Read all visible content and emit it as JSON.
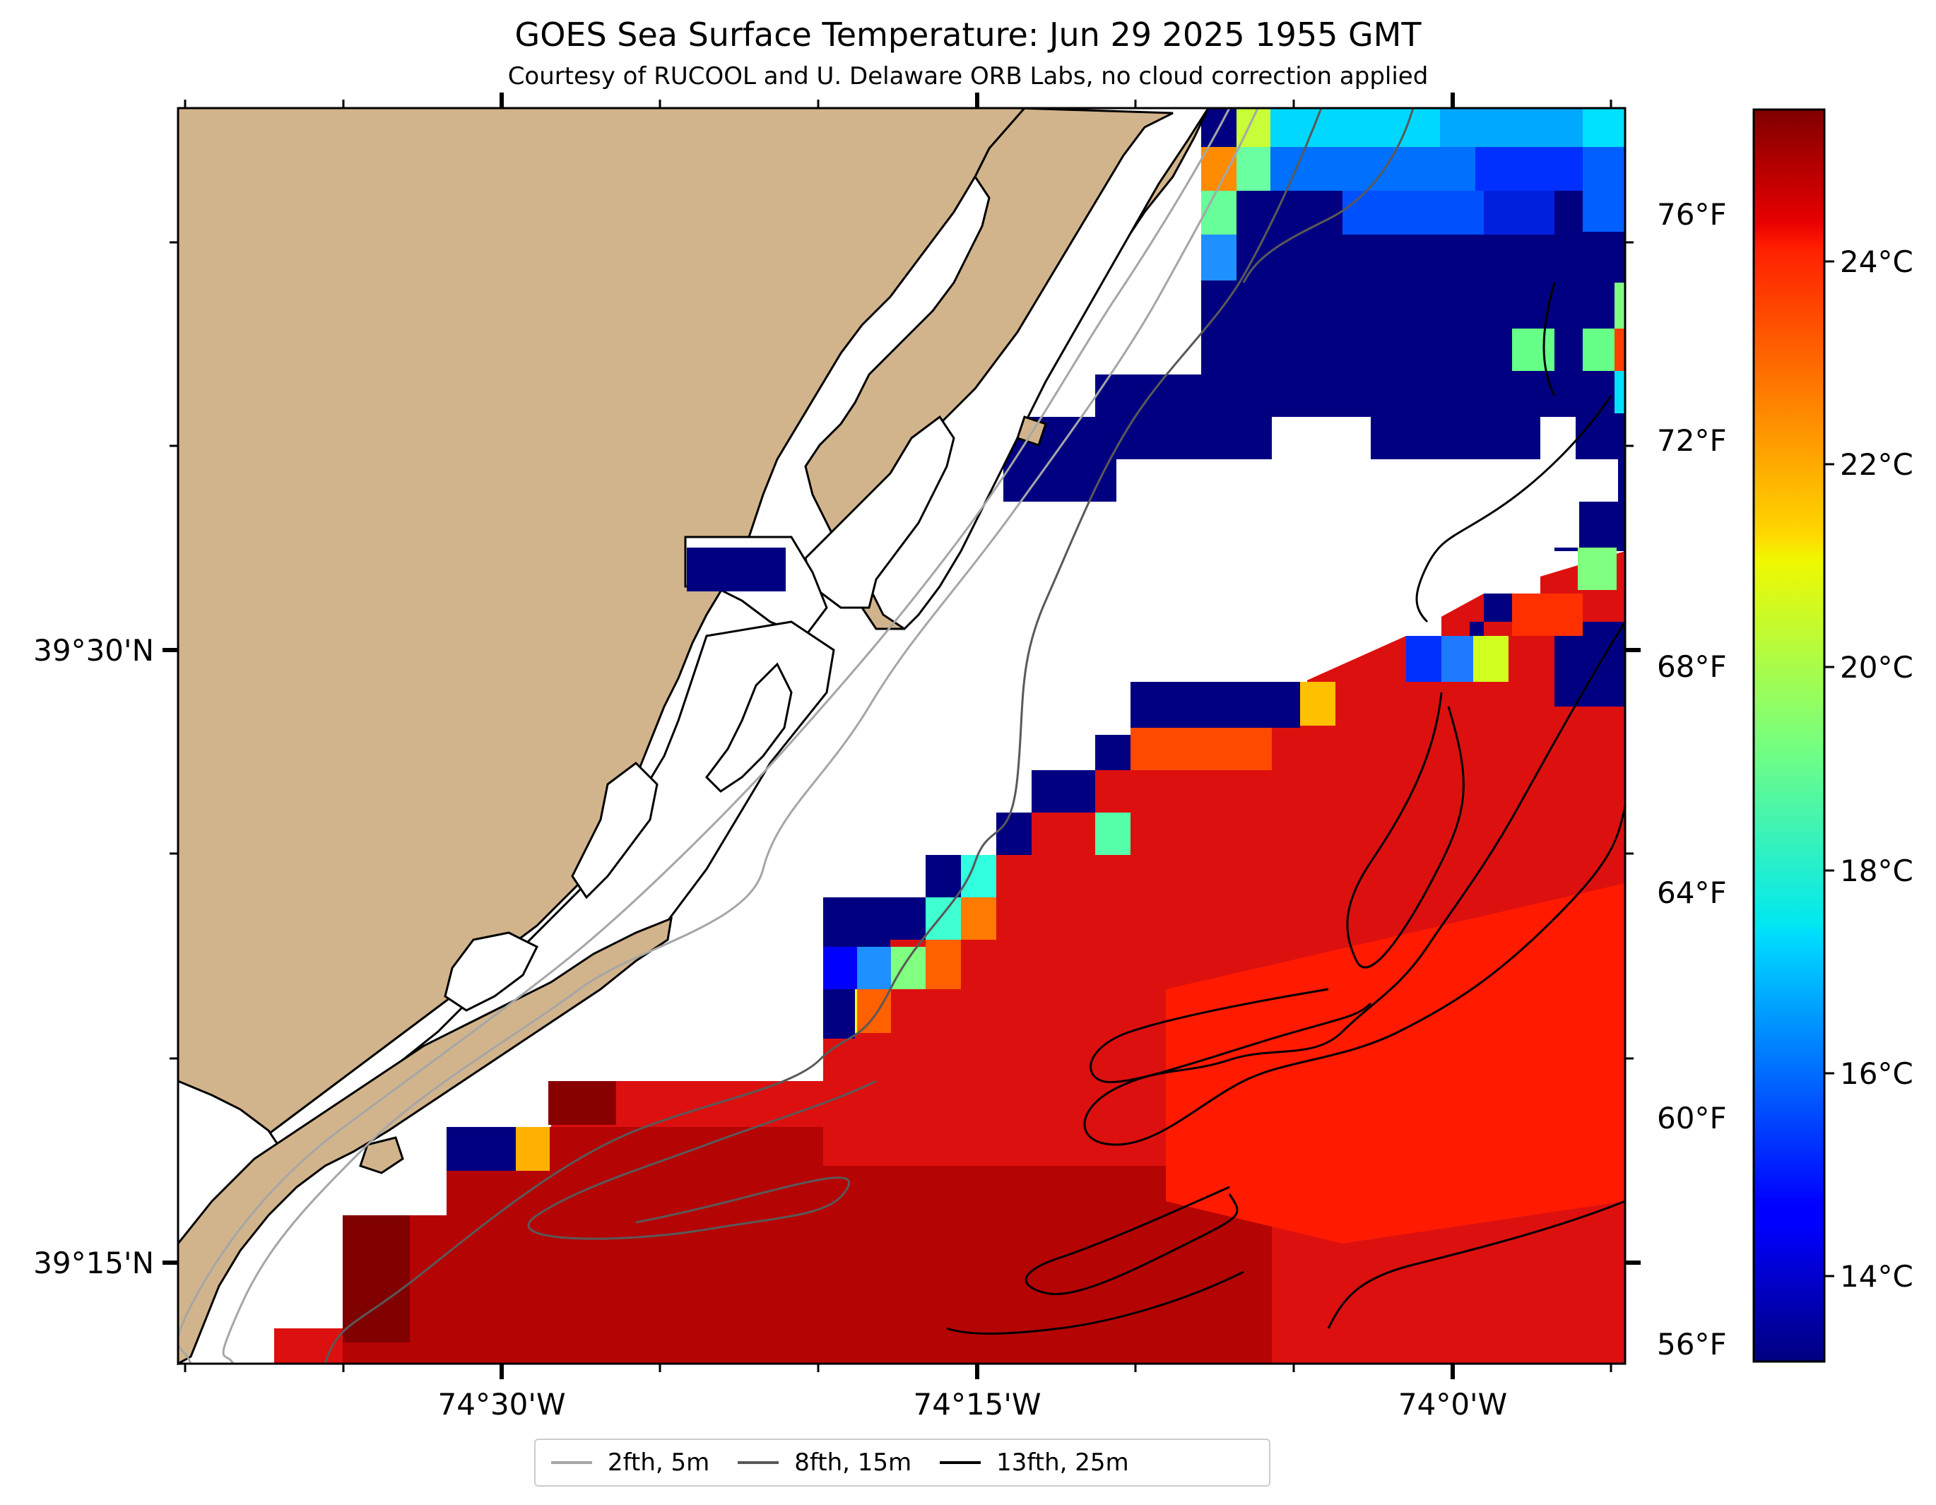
{
  "title": "GOES Sea Surface Temperature: Jun 29 2025 1955 GMT",
  "subtitle": "Courtesy of RUCOOL and U. Delaware ORB Labs, no cloud correction applied",
  "map": {
    "x_ticks": [
      "74°30'W",
      "74°15'W",
      "74°0'W"
    ],
    "y_ticks": [
      "39°30'N",
      "39°15'N"
    ]
  },
  "colorbar": {
    "colormap": "jet",
    "celsius_ticks": [
      "24°C",
      "22°C",
      "20°C",
      "18°C",
      "16°C",
      "14°C"
    ],
    "fahrenheit_ticks": [
      "76°F",
      "72°F",
      "68°F",
      "64°F",
      "60°F",
      "56°F"
    ]
  },
  "legend": [
    {
      "label": "2fth, 5m",
      "color": "#a6a6a6"
    },
    {
      "label": "8fth, 15m",
      "color": "#595959"
    },
    {
      "label": "13fth, 25m",
      "color": "#000000"
    }
  ],
  "colors": {
    "land": "#d2b48c",
    "warm_water": "#e00000",
    "cold_water": "#000080"
  }
}
